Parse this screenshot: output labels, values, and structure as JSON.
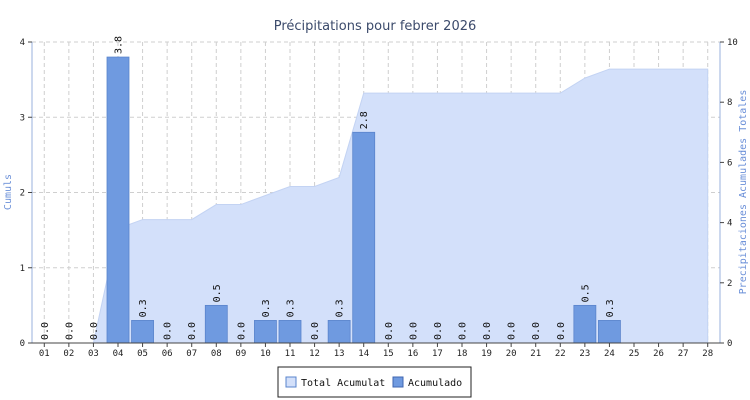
{
  "chart_data": {
    "type": "bar",
    "title": "Précipitations pour febrer 2026",
    "ylabel_left": "Cumuls",
    "ylabel_right": "Precipitaciones Acumulades Totales",
    "ylim_left": [
      0,
      4
    ],
    "ylim_right": [
      0,
      10
    ],
    "yticks_left": [
      "0",
      "1",
      "2",
      "3",
      "4"
    ],
    "yticks_right": [
      "0",
      "2",
      "4",
      "6",
      "8",
      "10"
    ],
    "grid": true,
    "categories": [
      "01",
      "02",
      "03",
      "04",
      "05",
      "06",
      "07",
      "08",
      "09",
      "10",
      "11",
      "12",
      "13",
      "14",
      "15",
      "16",
      "17",
      "18",
      "19",
      "20",
      "21",
      "22",
      "23",
      "24",
      "25",
      "26",
      "27",
      "28"
    ],
    "series": [
      {
        "name": "Acumulado",
        "kind": "bar",
        "axis": "left",
        "color": "#6f9ae0",
        "values": [
          0.0,
          0.0,
          0.0,
          3.8,
          0.3,
          0.0,
          0.0,
          0.5,
          0.0,
          0.3,
          0.3,
          0.0,
          0.3,
          2.8,
          0.0,
          0.0,
          0.0,
          0.0,
          0.0,
          0.0,
          0.0,
          0.0,
          0.5,
          0.3,
          null,
          null,
          null,
          null
        ],
        "labels": [
          "0.0",
          "0.0",
          "0.0",
          "3.8",
          "0.3",
          "0.0",
          "0.0",
          "0.5",
          "0.0",
          "0.3",
          "0.3",
          "0.0",
          "0.3",
          "2.8",
          "0.0",
          "0.0",
          "0.0",
          "0.0",
          "0.0",
          "0.0",
          "0.0",
          "0.0",
          "0.5",
          "0.3",
          "",
          "",
          "",
          ""
        ]
      },
      {
        "name": "Total Acumulat",
        "kind": "area",
        "axis": "right",
        "color": "#d3e0fa",
        "values": [
          0.0,
          0.0,
          0.0,
          3.8,
          4.1,
          4.1,
          4.1,
          4.6,
          4.6,
          4.9,
          5.2,
          5.2,
          5.5,
          8.3,
          8.3,
          8.3,
          8.3,
          8.3,
          8.3,
          8.3,
          8.3,
          8.3,
          8.8,
          9.1,
          9.1,
          9.1,
          9.1,
          9.1
        ]
      }
    ],
    "legend": {
      "position": "bottom-center",
      "items": [
        "Total Acumulat",
        "Acumulado"
      ]
    }
  }
}
